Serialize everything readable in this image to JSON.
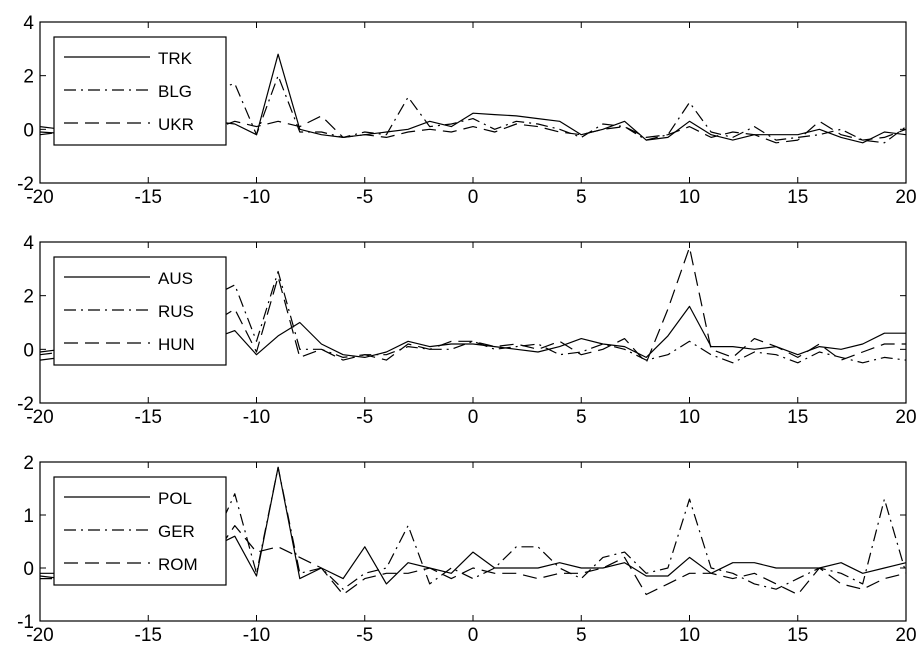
{
  "chart_data": [
    {
      "type": "line",
      "xlim": [
        -20,
        20
      ],
      "ylim": [
        -2,
        4
      ],
      "xticks": [
        -20,
        -15,
        -10,
        -5,
        0,
        5,
        10,
        15,
        20
      ],
      "yticks": [
        -2,
        0,
        2,
        4
      ],
      "legend_position": "top-left",
      "x": [
        -20,
        -19,
        -18,
        -17,
        -16,
        -15,
        -14,
        -13,
        -12,
        -11,
        -10,
        -9,
        -8,
        -7,
        -6,
        -5,
        -4,
        -3,
        -2,
        -1,
        0,
        1,
        2,
        3,
        4,
        5,
        6,
        7,
        8,
        9,
        10,
        11,
        12,
        13,
        14,
        15,
        16,
        17,
        18,
        19,
        20
      ],
      "series": [
        {
          "name": "TRK",
          "style": "solid",
          "values": [
            -0.1,
            -0.15,
            0.0,
            -0.1,
            -0.2,
            0.1,
            -0.3,
            0.0,
            0.3,
            0.2,
            -0.2,
            2.8,
            0.0,
            -0.2,
            -0.3,
            -0.2,
            -0.1,
            0.0,
            0.3,
            0.1,
            0.6,
            0.55,
            0.5,
            0.4,
            0.3,
            -0.2,
            0.0,
            0.3,
            -0.4,
            -0.3,
            0.3,
            -0.2,
            -0.4,
            -0.2,
            -0.2,
            -0.2,
            0.0,
            -0.3,
            -0.5,
            -0.1,
            -0.2
          ]
        },
        {
          "name": "BLG",
          "style": "dashdot",
          "values": [
            -0.2,
            -0.1,
            0.0,
            0.0,
            0.1,
            0.0,
            0.2,
            0.3,
            1.5,
            1.7,
            -0.2,
            2.0,
            -0.1,
            -0.1,
            -0.3,
            -0.1,
            -0.2,
            1.2,
            0.1,
            0.2,
            0.4,
            0.0,
            0.3,
            0.2,
            0.0,
            -0.3,
            0.2,
            0.1,
            -0.4,
            -0.2,
            1.0,
            -0.1,
            -0.3,
            0.1,
            -0.4,
            -0.3,
            -0.2,
            0.0,
            -0.4,
            -0.5,
            0.1
          ]
        },
        {
          "name": "UKR",
          "style": "dashed",
          "values": [
            0.1,
            0.0,
            -0.1,
            0.0,
            -0.1,
            0.0,
            -0.1,
            0.0,
            0.0,
            0.3,
            0.1,
            0.3,
            0.1,
            0.5,
            -0.3,
            -0.2,
            -0.3,
            -0.1,
            0.0,
            -0.1,
            0.1,
            -0.1,
            0.2,
            0.1,
            -0.1,
            -0.2,
            0.0,
            0.1,
            -0.3,
            -0.2,
            0.1,
            -0.3,
            -0.1,
            -0.2,
            -0.5,
            -0.4,
            0.3,
            -0.2,
            -0.4,
            -0.3,
            0.0
          ]
        }
      ]
    },
    {
      "type": "line",
      "xlim": [
        -20,
        20
      ],
      "ylim": [
        -2,
        4
      ],
      "xticks": [
        -20,
        -15,
        -10,
        -5,
        0,
        5,
        10,
        15,
        20
      ],
      "yticks": [
        -2,
        0,
        2,
        4
      ],
      "legend_position": "top-left",
      "x": [
        -20,
        -19,
        -18,
        -17,
        -16,
        -15,
        -14,
        -13,
        -12,
        -11,
        -10,
        -9,
        -8,
        -7,
        -6,
        -5,
        -4,
        -3,
        -2,
        -1,
        0,
        1,
        2,
        3,
        4,
        5,
        6,
        7,
        8,
        9,
        10,
        11,
        12,
        13,
        14,
        15,
        16,
        17,
        18,
        19,
        20
      ],
      "series": [
        {
          "name": "AUS",
          "style": "solid",
          "values": [
            -0.1,
            0.0,
            0.1,
            0.0,
            0.1,
            0.2,
            0.3,
            0.2,
            0.4,
            0.7,
            -0.2,
            0.5,
            1.0,
            0.2,
            -0.2,
            -0.3,
            -0.1,
            0.3,
            0.1,
            0.2,
            0.2,
            0.1,
            0.0,
            -0.1,
            0.1,
            0.4,
            0.2,
            0.1,
            -0.3,
            0.5,
            1.6,
            0.1,
            0.1,
            0.0,
            0.1,
            -0.2,
            0.1,
            0.0,
            0.2,
            0.6,
            0.6
          ]
        },
        {
          "name": "RUS",
          "style": "dashdot",
          "values": [
            -0.2,
            -0.1,
            0.0,
            0.1,
            0.0,
            -0.1,
            0.2,
            0.3,
            2.0,
            2.4,
            0.3,
            2.9,
            0.0,
            0.0,
            -0.3,
            -0.2,
            -0.2,
            0.1,
            0.0,
            0.0,
            0.3,
            0.0,
            0.1,
            0.2,
            -0.2,
            -0.1,
            0.2,
            0.0,
            -0.4,
            -0.2,
            0.3,
            -0.2,
            -0.5,
            -0.1,
            -0.2,
            -0.5,
            -0.1,
            -0.3,
            -0.5,
            -0.3,
            -0.4
          ]
        },
        {
          "name": "HUN",
          "style": "dashed",
          "values": [
            -0.4,
            -0.3,
            -0.2,
            -0.2,
            -0.1,
            0.1,
            0.2,
            0.3,
            1.0,
            1.5,
            -0.1,
            2.7,
            -0.3,
            0.0,
            -0.4,
            -0.2,
            -0.4,
            0.2,
            0.0,
            0.3,
            0.3,
            0.1,
            0.2,
            0.0,
            0.3,
            -0.2,
            0.0,
            0.4,
            -0.5,
            1.5,
            3.8,
            0.0,
            -0.3,
            0.4,
            0.1,
            -0.3,
            0.2,
            -0.4,
            -0.1,
            0.2,
            0.2
          ]
        }
      ]
    },
    {
      "type": "line",
      "xlim": [
        -20,
        20
      ],
      "ylim": [
        -1,
        2
      ],
      "xticks": [
        -20,
        -15,
        -10,
        -5,
        0,
        5,
        10,
        15,
        20
      ],
      "yticks": [
        -1,
        0,
        1,
        2
      ],
      "legend_position": "top-left",
      "x": [
        -20,
        -19,
        -18,
        -17,
        -16,
        -15,
        -14,
        -13,
        -12,
        -11,
        -10,
        -9,
        -8,
        -7,
        -6,
        -5,
        -4,
        -3,
        -2,
        -1,
        0,
        1,
        2,
        3,
        4,
        5,
        6,
        7,
        8,
        9,
        10,
        11,
        12,
        13,
        14,
        15,
        16,
        17,
        18,
        19,
        20
      ],
      "series": [
        {
          "name": "POL",
          "style": "solid",
          "values": [
            -0.15,
            -0.2,
            -0.1,
            -0.1,
            0.0,
            -0.2,
            -0.1,
            0.0,
            0.4,
            0.6,
            -0.15,
            1.9,
            -0.2,
            0.0,
            -0.2,
            0.4,
            -0.3,
            0.1,
            0.0,
            -0.1,
            0.3,
            0.0,
            0.0,
            0.0,
            0.1,
            0.0,
            0.0,
            0.1,
            -0.15,
            -0.15,
            0.2,
            -0.1,
            0.1,
            0.1,
            0.0,
            0.0,
            0.0,
            0.1,
            -0.1,
            0.0,
            0.1
          ]
        },
        {
          "name": "GER",
          "style": "dashdot",
          "values": [
            -0.2,
            -0.2,
            -0.1,
            -0.2,
            -0.3,
            -0.3,
            -0.2,
            0.0,
            0.5,
            1.4,
            -0.1,
            1.9,
            -0.1,
            0.0,
            -0.4,
            -0.1,
            0.0,
            0.8,
            -0.3,
            0.0,
            -0.2,
            0.0,
            0.4,
            0.4,
            0.0,
            -0.2,
            0.2,
            0.3,
            -0.1,
            0.0,
            1.3,
            0.0,
            -0.1,
            -0.3,
            -0.4,
            -0.2,
            0.0,
            -0.1,
            -0.3,
            1.3,
            -0.1
          ]
        },
        {
          "name": "ROM",
          "style": "dashed",
          "values": [
            -0.1,
            -0.1,
            -0.1,
            0.0,
            0.0,
            -0.1,
            0.0,
            0.1,
            0.2,
            0.8,
            0.3,
            0.4,
            0.2,
            0.0,
            -0.5,
            -0.2,
            -0.1,
            -0.1,
            0.0,
            -0.2,
            0.0,
            -0.1,
            -0.1,
            -0.2,
            -0.1,
            -0.1,
            0.0,
            0.2,
            -0.5,
            -0.3,
            -0.1,
            -0.1,
            -0.2,
            -0.1,
            -0.3,
            -0.5,
            0.0,
            -0.3,
            -0.4,
            -0.2,
            -0.1
          ]
        }
      ]
    }
  ]
}
